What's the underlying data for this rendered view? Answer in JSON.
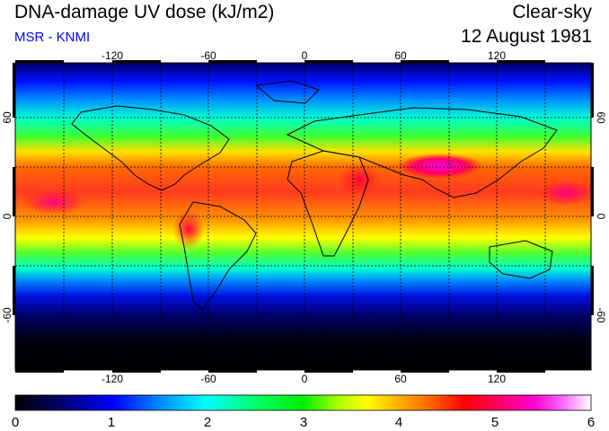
{
  "header": {
    "title": "DNA-damage UV dose (kJ/m2)",
    "source": "MSR - KNMI",
    "condition": "Clear-sky",
    "date": "12 August 1981"
  },
  "map": {
    "lon_ticks": [
      "-120",
      "-60",
      "0",
      "60",
      "120"
    ],
    "lat_ticks": [
      "60",
      "0",
      "-60"
    ]
  },
  "colorbar": {
    "ticks": [
      "0",
      "1",
      "2",
      "3",
      "4",
      "5",
      "6"
    ],
    "colors": [
      "#000000",
      "#000060",
      "#0000ff",
      "#0088ff",
      "#00ffff",
      "#00ff66",
      "#00ee00",
      "#aaff00",
      "#ffff00",
      "#ffaa00",
      "#ff6600",
      "#ff0000",
      "#ff0066",
      "#ff00cc",
      "#ff66ff",
      "#ffffff"
    ]
  }
}
